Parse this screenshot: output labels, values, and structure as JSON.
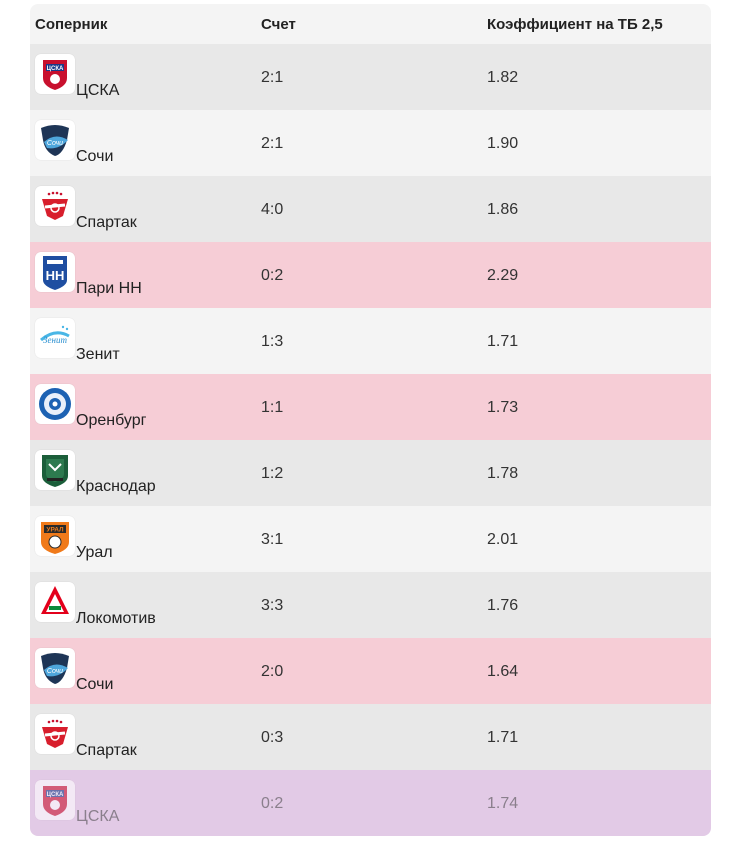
{
  "header": {
    "col_opponent": "Соперник",
    "col_score": "Счет",
    "col_odds": "Коэффициент на ТБ 2,5"
  },
  "rows": [
    {
      "team": "ЦСКА",
      "score": "2:1",
      "odds": "1.82",
      "logo": "cska-logo-icon",
      "tone": "grey"
    },
    {
      "team": "Сочи",
      "score": "2:1",
      "odds": "1.90",
      "logo": "sochi-logo-icon",
      "tone": "white"
    },
    {
      "team": "Спартак",
      "score": "4:0",
      "odds": "1.86",
      "logo": "spartak-logo-icon",
      "tone": "grey"
    },
    {
      "team": "Пари НН",
      "score": "0:2",
      "odds": "2.29",
      "logo": "pari-nn-logo-icon",
      "tone": "pink"
    },
    {
      "team": "Зенит",
      "score": "1:3",
      "odds": "1.71",
      "logo": "zenit-logo-icon",
      "tone": "white"
    },
    {
      "team": "Оренбург",
      "score": "1:1",
      "odds": "1.73",
      "logo": "orenburg-logo-icon",
      "tone": "pink"
    },
    {
      "team": "Краснодар",
      "score": "1:2",
      "odds": "1.78",
      "logo": "krasnodar-logo-icon",
      "tone": "grey"
    },
    {
      "team": "Урал",
      "score": "3:1",
      "odds": "2.01",
      "logo": "ural-logo-icon",
      "tone": "white"
    },
    {
      "team": "Локомотив",
      "score": "3:3",
      "odds": "1.76",
      "logo": "lokomotiv-logo-icon",
      "tone": "grey"
    },
    {
      "team": "Сочи",
      "score": "2:0",
      "odds": "1.64",
      "logo": "sochi-logo-icon",
      "tone": "pink"
    },
    {
      "team": "Спартак",
      "score": "0:3",
      "odds": "1.71",
      "logo": "spartak-logo-icon",
      "tone": "grey"
    },
    {
      "team": "ЦСКА",
      "score": "0:2",
      "odds": "1.74",
      "logo": "cska-logo-icon",
      "tone": "violet"
    }
  ],
  "colors": {
    "grey": "#e8e8e8",
    "white": "#f4f4f4",
    "pink": "#f6cdd6",
    "violet": "#e2cae6"
  }
}
